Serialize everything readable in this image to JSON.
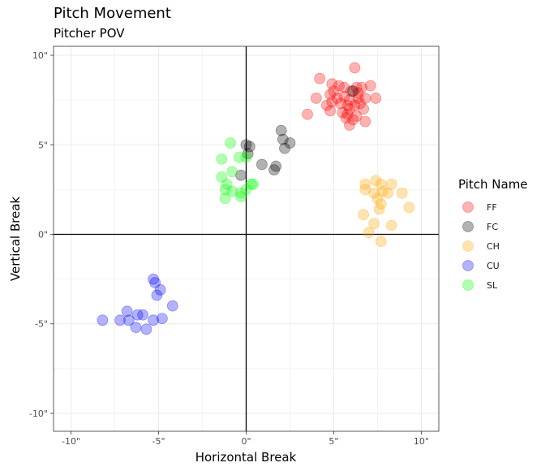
{
  "chart_data": {
    "type": "scatter",
    "title": "Pitch Movement",
    "subtitle": "Pitcher POV",
    "xlabel": "Horizontal Break",
    "ylabel": "Vertical Break",
    "xlim": [
      -11,
      11
    ],
    "ylim": [
      -11,
      10.5
    ],
    "x_ticks": [
      -10,
      -5,
      0,
      5,
      10
    ],
    "y_ticks": [
      -10,
      -5,
      0,
      5,
      10
    ],
    "x_tick_labels": [
      "-10\"",
      "-5\"",
      "0\"",
      "5\"",
      "10\""
    ],
    "y_tick_labels": [
      "-10\"",
      "-5\"",
      "0\"",
      "5\"",
      "10\""
    ],
    "grid": true,
    "reference_lines": {
      "x": 0,
      "y": 0
    },
    "legend_title": "Pitch Name",
    "legend_position": "right",
    "series": [
      {
        "name": "FF",
        "color": "#ff0000",
        "points": [
          [
            6.2,
            9.3
          ],
          [
            4.2,
            8.7
          ],
          [
            4.9,
            8.4
          ],
          [
            5.3,
            8.3
          ],
          [
            5.6,
            8.2
          ],
          [
            6.3,
            8.2
          ],
          [
            6.6,
            8.2
          ],
          [
            7.1,
            8.3
          ],
          [
            5.0,
            8.0
          ],
          [
            6.0,
            8.0
          ],
          [
            6.4,
            7.9
          ],
          [
            4.0,
            7.6
          ],
          [
            4.8,
            7.8
          ],
          [
            5.2,
            7.6
          ],
          [
            5.6,
            7.7
          ],
          [
            5.9,
            7.5
          ],
          [
            6.4,
            7.6
          ],
          [
            6.8,
            7.6
          ],
          [
            7.4,
            7.6
          ],
          [
            4.9,
            7.4
          ],
          [
            5.4,
            7.3
          ],
          [
            5.8,
            7.2
          ],
          [
            6.2,
            7.2
          ],
          [
            6.7,
            7.0
          ],
          [
            4.6,
            7.2
          ],
          [
            5.9,
            7.0
          ],
          [
            5.5,
            6.8
          ],
          [
            4.8,
            6.9
          ],
          [
            5.8,
            6.7
          ],
          [
            6.3,
            6.6
          ],
          [
            3.5,
            6.7
          ],
          [
            5.7,
            6.5
          ],
          [
            6.8,
            6.3
          ],
          [
            5.9,
            6.1
          ],
          [
            6.1,
            6.4
          ],
          [
            6.5,
            7.3
          ]
        ]
      },
      {
        "name": "FC",
        "color": "#000000",
        "points": [
          [
            6.1,
            8.0
          ],
          [
            2.0,
            5.8
          ],
          [
            2.1,
            5.3
          ],
          [
            2.5,
            5.1
          ],
          [
            2.2,
            4.8
          ],
          [
            0.0,
            5.0
          ],
          [
            0.2,
            4.9
          ],
          [
            0.1,
            4.5
          ],
          [
            0.9,
            3.9
          ],
          [
            1.7,
            3.8
          ],
          [
            1.6,
            3.6
          ],
          [
            -0.3,
            3.3
          ]
        ]
      },
      {
        "name": "CH",
        "color": "#ffa500",
        "points": [
          [
            6.8,
            2.8
          ],
          [
            7.4,
            3.0
          ],
          [
            8.3,
            2.8
          ],
          [
            7.7,
            2.8
          ],
          [
            6.8,
            2.5
          ],
          [
            7.3,
            2.3
          ],
          [
            7.8,
            2.4
          ],
          [
            8.1,
            2.3
          ],
          [
            8.9,
            2.3
          ],
          [
            7.5,
            2.0
          ],
          [
            7.7,
            1.7
          ],
          [
            9.3,
            1.5
          ],
          [
            7.6,
            1.4
          ],
          [
            6.7,
            1.1
          ],
          [
            7.3,
            0.6
          ],
          [
            8.3,
            0.5
          ],
          [
            7.0,
            0.1
          ],
          [
            7.7,
            -0.4
          ]
        ]
      },
      {
        "name": "CU",
        "color": "#0000ff",
        "points": [
          [
            -5.3,
            -2.5
          ],
          [
            -5.2,
            -2.7
          ],
          [
            -4.9,
            -3.1
          ],
          [
            -5.1,
            -3.4
          ],
          [
            -4.2,
            -4.0
          ],
          [
            -6.8,
            -4.3
          ],
          [
            -6.2,
            -4.5
          ],
          [
            -5.9,
            -4.5
          ],
          [
            -8.2,
            -4.8
          ],
          [
            -7.2,
            -4.8
          ],
          [
            -6.7,
            -4.8
          ],
          [
            -5.3,
            -4.8
          ],
          [
            -4.8,
            -4.7
          ],
          [
            -6.3,
            -5.2
          ],
          [
            -5.7,
            -5.3
          ]
        ]
      },
      {
        "name": "SL",
        "color": "#00ff00",
        "points": [
          [
            -0.9,
            5.1
          ],
          [
            -1.4,
            4.2
          ],
          [
            -0.4,
            4.3
          ],
          [
            0.0,
            4.3
          ],
          [
            -0.8,
            3.5
          ],
          [
            -1.4,
            3.2
          ],
          [
            -1.1,
            2.8
          ],
          [
            0.3,
            2.8
          ],
          [
            0.4,
            2.8
          ],
          [
            -1.2,
            2.5
          ],
          [
            -0.8,
            2.4
          ],
          [
            -0.3,
            2.3
          ],
          [
            0.0,
            2.5
          ],
          [
            -0.3,
            2.1
          ],
          [
            -1.2,
            2.0
          ]
        ]
      }
    ]
  }
}
